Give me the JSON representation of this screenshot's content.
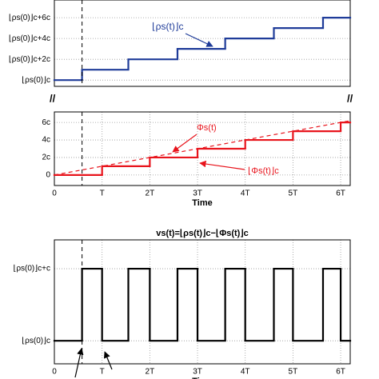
{
  "chart_data": [
    {
      "type": "step",
      "annotation": "⌊ρs(t)⌋c",
      "ylim": [
        -0.6,
        7.7
      ],
      "yticks": [
        {
          "value": 0,
          "label": "⌊ρs(0)⌋c"
        },
        {
          "value": 2,
          "label": "⌊ρs(0)⌋c+2c"
        },
        {
          "value": 4,
          "label": "⌊ρs(0)⌋c+4c"
        },
        {
          "value": 6,
          "label": "⌊ρs(0)⌋c+6c"
        }
      ],
      "xlim": [
        0,
        6.2
      ],
      "grid": true,
      "series": [
        {
          "color": "#1f3c99",
          "style": "solid",
          "x": [
            0,
            0.58,
            1.55,
            2.58,
            3.58,
            4.6,
            5.63
          ],
          "values": [
            0,
            1,
            2,
            3,
            4,
            5,
            6
          ]
        }
      ]
    },
    {
      "type": "step",
      "annotations": [
        "Φs(t)",
        "⌊Φs(t)⌋c"
      ],
      "xlabel": "Time",
      "ylim": [
        -1.2,
        7.2
      ],
      "yticks": [
        0,
        {
          "value": 2,
          "label": "2c"
        },
        {
          "value": 4,
          "label": "4c"
        },
        {
          "value": 6,
          "label": "6c"
        }
      ],
      "xlim": [
        0,
        6.2
      ],
      "xticks": [
        0,
        {
          "value": 1,
          "label": "T"
        },
        {
          "value": 2,
          "label": "2T"
        },
        {
          "value": 3,
          "label": "3T"
        },
        {
          "value": 4,
          "label": "4T"
        },
        {
          "value": 5,
          "label": "5T"
        },
        {
          "value": 6,
          "label": "6T"
        }
      ],
      "grid": true,
      "series": [
        {
          "color": "#e8141c",
          "style": "solid",
          "kind": "step",
          "x": [
            0,
            1,
            2,
            3,
            4,
            5,
            6
          ],
          "values": [
            0,
            1,
            2,
            3,
            4,
            5,
            6
          ]
        },
        {
          "color": "#e8141c",
          "style": "dashed",
          "kind": "line",
          "x": [
            0,
            6.2
          ],
          "values": [
            0,
            6.2
          ]
        }
      ]
    },
    {
      "type": "step",
      "title": "vs(t)=⌊ρs(t)⌋c−⌊Φs(t)⌋c",
      "xlabel": "Time",
      "ylim": [
        -0.32,
        1.4
      ],
      "yticks": [
        {
          "value": 0,
          "label": "⌊ρs(0)⌋c"
        },
        {
          "value": 1,
          "label": "⌊ρs(0)⌋c+c"
        }
      ],
      "xlim": [
        0,
        6.2
      ],
      "xticks": [
        0,
        {
          "value": 1,
          "label": "T"
        },
        {
          "value": 2,
          "label": "2T"
        },
        {
          "value": 3,
          "label": "3T"
        },
        {
          "value": 4,
          "label": "4T"
        },
        {
          "value": 5,
          "label": "5T"
        },
        {
          "value": 6,
          "label": "6T"
        }
      ],
      "grid": true,
      "series": [
        {
          "color": "#000000",
          "style": "solid",
          "x": [
            0,
            0.58,
            1,
            1.55,
            2,
            2.58,
            3,
            3.58,
            4,
            4.6,
            5,
            5.63,
            6
          ],
          "values": [
            0,
            1,
            0,
            1,
            0,
            1,
            0,
            1,
            0,
            1,
            0,
            1,
            0
          ]
        }
      ]
    }
  ]
}
